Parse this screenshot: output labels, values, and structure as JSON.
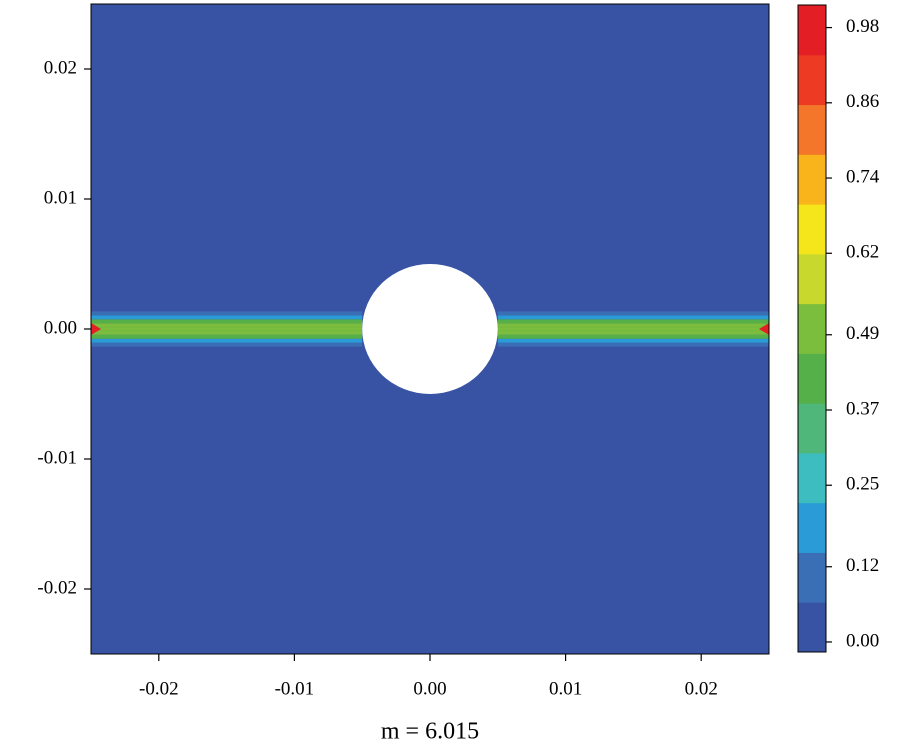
{
  "chart_data": {
    "type": "contour",
    "annotation": "m = 6.015",
    "xlim": [
      -0.025,
      0.025
    ],
    "ylim": [
      -0.025,
      0.025
    ],
    "xticks": [
      -0.02,
      -0.01,
      {
        "value": 0,
        "label": "0.00"
      },
      0.01,
      0.02
    ],
    "yticks": [
      -0.02,
      -0.01,
      {
        "value": 0,
        "label": "0.00"
      },
      0.01,
      0.02
    ],
    "clim": [
      -0.016,
      1.016
    ],
    "cticks": [
      {
        "value": 0,
        "label": "0.00"
      },
      0.12,
      0.25,
      0.37,
      0.49,
      0.62,
      0.74,
      0.86,
      0.98
    ],
    "colormap": [
      "#3953a4",
      "#3a6fb6",
      "#2a9bd6",
      "#3dbdc0",
      "#4fb77a",
      "#55b04a",
      "#7bbd3c",
      "#c8d82c",
      "#f4e61a",
      "#f9b31b",
      "#f3762a",
      "#ec3a23",
      "#e31e24"
    ],
    "background": 0,
    "crack_segments": [
      [
        -0.025,
        -0.005
      ],
      [
        0.005,
        0.025
      ]
    ],
    "crack_profile": {
      "y": [
        -0.0012,
        -0.0009,
        -0.0006,
        -0.0003,
        0,
        0.0003,
        0.0006,
        0.0009,
        0.0012
      ],
      "values": [
        0.08,
        0.22,
        0.4,
        0.5,
        0.53,
        0.5,
        0.4,
        0.22,
        0.08
      ]
    },
    "tips": [
      {
        "x": -0.025,
        "y": 0,
        "value": 0.98
      },
      {
        "x": 0.025,
        "y": 0,
        "value": 0.98
      }
    ],
    "hole": {
      "x": 0,
      "y": 0,
      "r": 0.005
    }
  }
}
